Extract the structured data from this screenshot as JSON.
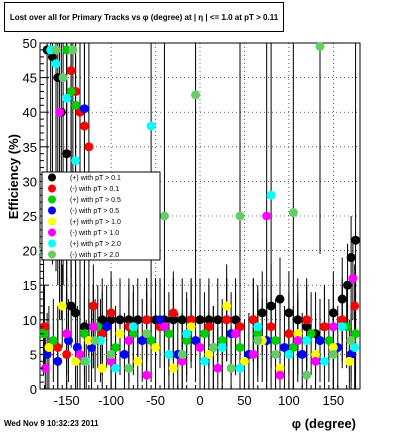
{
  "chart_data": {
    "type": "scatter",
    "title": "Lost over all for Primary Tracks vs φ (degree) at | η | <= 1.0 at pT > 0.11",
    "xlabel": "φ (degree)",
    "ylabel": "Efficiency (%)",
    "xlim": [
      -180,
      180
    ],
    "ylim": [
      0,
      50
    ],
    "x_ticks": [
      -150,
      -100,
      -50,
      0,
      50,
      100,
      150
    ],
    "y_ticks": [
      0,
      5,
      10,
      15,
      20,
      25,
      30,
      35,
      40,
      45,
      50
    ],
    "grid": true,
    "legend_position": "left-middle",
    "series": [
      {
        "name": "(+) with pT > 0.1",
        "color": "#000000",
        "points": [
          [
            -172,
            49
          ],
          [
            -166,
            48
          ],
          [
            -160,
            45
          ],
          [
            -156,
            40
          ],
          [
            -150,
            34
          ],
          [
            -145,
            12
          ],
          [
            -140,
            11
          ],
          [
            -130,
            9
          ],
          [
            -120,
            9
          ],
          [
            -110,
            10
          ],
          [
            -100,
            10
          ],
          [
            -90,
            10
          ],
          [
            -80,
            10
          ],
          [
            -70,
            10
          ],
          [
            -60,
            10
          ],
          [
            -50,
            10
          ],
          [
            -40,
            10
          ],
          [
            -30,
            10
          ],
          [
            -20,
            10
          ],
          [
            -10,
            10
          ],
          [
            0,
            10
          ],
          [
            10,
            10
          ],
          [
            20,
            10
          ],
          [
            30,
            10
          ],
          [
            40,
            10
          ],
          [
            60,
            10
          ],
          [
            70,
            11
          ],
          [
            80,
            12
          ],
          [
            90,
            13
          ],
          [
            100,
            11
          ],
          [
            110,
            10
          ],
          [
            120,
            9
          ],
          [
            130,
            8
          ],
          [
            140,
            9
          ],
          [
            150,
            11
          ],
          [
            160,
            13
          ],
          [
            166,
            15
          ],
          [
            170,
            19
          ],
          [
            175,
            21.5
          ]
        ]
      },
      {
        "name": "(-) with pT > 0.1",
        "color": "#ff0000",
        "points": [
          [
            -175,
            9
          ],
          [
            -160,
            6
          ],
          [
            -150,
            5
          ],
          [
            -145,
            46
          ],
          [
            -140,
            43
          ],
          [
            -135,
            40
          ],
          [
            -130,
            38
          ],
          [
            -125,
            35
          ],
          [
            -120,
            12
          ],
          [
            -110,
            8
          ],
          [
            -100,
            11
          ],
          [
            -80,
            9
          ],
          [
            -60,
            10
          ],
          [
            -45,
            9
          ],
          [
            -30,
            11
          ],
          [
            -10,
            10
          ],
          [
            10,
            9
          ],
          [
            30,
            10
          ],
          [
            45,
            9
          ],
          [
            60,
            10
          ],
          [
            80,
            9
          ],
          [
            100,
            8
          ],
          [
            120,
            10
          ],
          [
            140,
            9
          ],
          [
            160,
            10
          ],
          [
            174,
            12
          ]
        ]
      },
      {
        "name": "(+) with pT > 0.5",
        "color": "#00cc00",
        "points": [
          [
            -176,
            8
          ],
          [
            -165,
            7
          ],
          [
            -150,
            49
          ],
          [
            -145,
            43
          ],
          [
            -140,
            41
          ],
          [
            -130,
            8
          ],
          [
            -115,
            9
          ],
          [
            -95,
            6
          ],
          [
            -75,
            8
          ],
          [
            -55,
            7
          ],
          [
            -35,
            8
          ],
          [
            -15,
            7
          ],
          [
            5,
            8
          ],
          [
            25,
            7
          ],
          [
            45,
            6
          ],
          [
            65,
            8
          ],
          [
            85,
            7
          ],
          [
            105,
            6
          ],
          [
            125,
            8
          ],
          [
            145,
            7
          ],
          [
            165,
            9
          ],
          [
            175,
            8
          ]
        ]
      },
      {
        "name": "(-) with pT > 0.5",
        "color": "#0000ff",
        "points": [
          [
            -172,
            5
          ],
          [
            -160,
            4
          ],
          [
            -148,
            7
          ],
          [
            -138,
            6
          ],
          [
            -130,
            40.5
          ],
          [
            -122,
            6
          ],
          [
            -105,
            9
          ],
          [
            -85,
            5
          ],
          [
            -65,
            7
          ],
          [
            -45,
            10
          ],
          [
            -25,
            5
          ],
          [
            -5,
            7
          ],
          [
            15,
            6
          ],
          [
            35,
            8
          ],
          [
            55,
            5
          ],
          [
            75,
            7
          ],
          [
            95,
            6
          ],
          [
            115,
            5
          ],
          [
            135,
            7
          ],
          [
            155,
            6
          ],
          [
            170,
            5
          ]
        ]
      },
      {
        "name": "(+) with pT > 1.0",
        "color": "#ffff00",
        "points": [
          [
            -170,
            6
          ],
          [
            -155,
            12
          ],
          [
            -140,
            4
          ],
          [
            -125,
            7
          ],
          [
            -110,
            3
          ],
          [
            -90,
            8
          ],
          [
            -70,
            4
          ],
          [
            -50,
            6
          ],
          [
            -30,
            3
          ],
          [
            -10,
            9
          ],
          [
            10,
            5
          ],
          [
            30,
            12
          ],
          [
            50,
            4
          ],
          [
            70,
            7
          ],
          [
            90,
            3
          ],
          [
            110,
            8
          ],
          [
            130,
            5
          ],
          [
            150,
            6
          ],
          [
            168,
            4
          ]
        ]
      },
      {
        "name": "(-) with pT > 1.0",
        "color": "#ff00ff",
        "points": [
          [
            -174,
            3
          ],
          [
            -158,
            40
          ],
          [
            -150,
            8
          ],
          [
            -135,
            5
          ],
          [
            -120,
            9
          ],
          [
            -100,
            4
          ],
          [
            -80,
            7
          ],
          [
            -60,
            2
          ],
          [
            -40,
            9
          ],
          [
            -20,
            4
          ],
          [
            0,
            6
          ],
          [
            20,
            3
          ],
          [
            40,
            8
          ],
          [
            60,
            5
          ],
          [
            75,
            25
          ],
          [
            90,
            2
          ],
          [
            110,
            7
          ],
          [
            130,
            4
          ],
          [
            150,
            9
          ],
          [
            172,
            16
          ]
        ]
      },
      {
        "name": "(+) with pT > 2.0",
        "color": "#00ffff",
        "points": [
          [
            -168,
            49
          ],
          [
            -162,
            47
          ],
          [
            -150,
            42
          ],
          [
            -140,
            33
          ],
          [
            -128,
            4
          ],
          [
            -112,
            7
          ],
          [
            -95,
            3
          ],
          [
            -75,
            9
          ],
          [
            -55,
            38
          ],
          [
            -35,
            5
          ],
          [
            -15,
            8
          ],
          [
            5,
            4
          ],
          [
            25,
            6
          ],
          [
            45,
            3
          ],
          [
            65,
            9
          ],
          [
            80,
            28
          ],
          [
            100,
            5
          ],
          [
            120,
            7
          ],
          [
            140,
            4
          ],
          [
            160,
            9
          ],
          [
            174,
            6
          ]
        ]
      },
      {
        "name": "(-) with pT > 2.0",
        "color": "#66cc66",
        "points": [
          [
            -176,
            20
          ],
          [
            -162,
            49
          ],
          [
            -154,
            45
          ],
          [
            -143,
            49
          ],
          [
            -130,
            4
          ],
          [
            -118,
            7
          ],
          [
            -100,
            5
          ],
          [
            -80,
            3
          ],
          [
            -60,
            8
          ],
          [
            -40,
            25
          ],
          [
            -20,
            5
          ],
          [
            -5,
            42.5
          ],
          [
            15,
            6
          ],
          [
            35,
            3
          ],
          [
            45,
            25
          ],
          [
            65,
            7
          ],
          [
            85,
            5
          ],
          [
            105,
            25.5
          ],
          [
            120,
            2
          ],
          [
            135,
            49.5
          ],
          [
            150,
            5
          ],
          [
            170,
            7
          ]
        ]
      }
    ]
  },
  "footer": {
    "timestamp": "Wed Nov  9 10:32:23 2011"
  }
}
